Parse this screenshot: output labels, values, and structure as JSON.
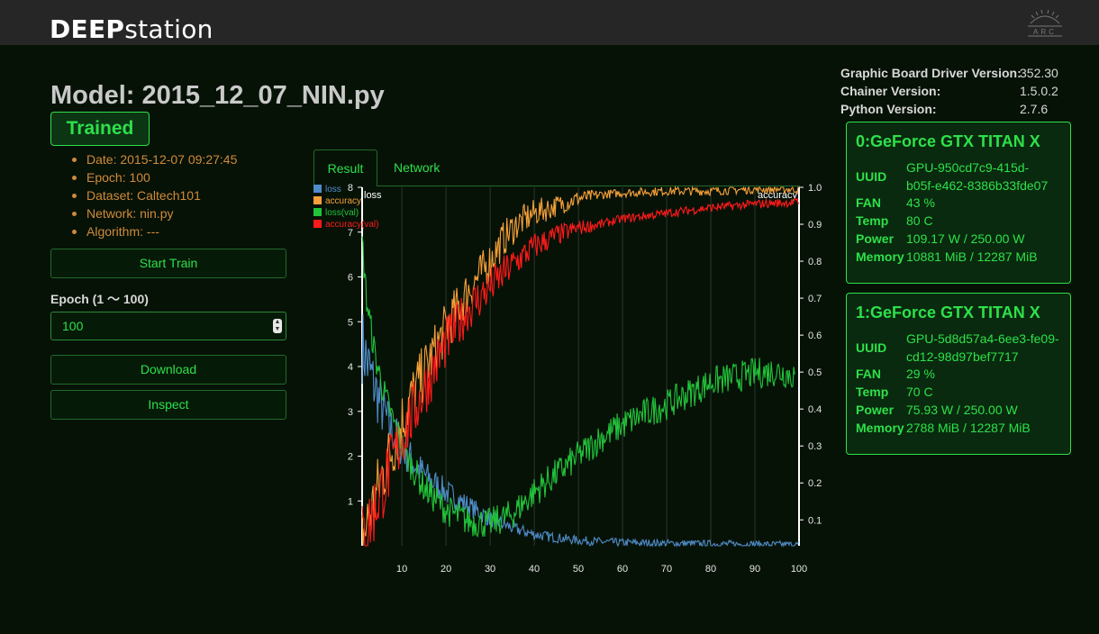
{
  "app": {
    "brand_bold": "DEEP",
    "brand_light": "station",
    "logo_text": "ARC"
  },
  "model": {
    "title": "Model: 2015_12_07_NIN.py",
    "status": "Trained",
    "info": [
      "Date: 2015-12-07 09:27:45",
      "Epoch: 100",
      "Dataset: Caltech101",
      "Network: nin.py",
      "Algorithm: ---"
    ]
  },
  "actions": {
    "start_train": "Start Train",
    "epoch_label": "Epoch (1 〜 100)",
    "epoch_value": "100",
    "download": "Download",
    "inspect": "Inspect"
  },
  "tabs": {
    "result": "Result",
    "network": "Network"
  },
  "versions": [
    {
      "label": "Graphic Board Driver Version:",
      "value": "352.30"
    },
    {
      "label": "Chainer Version:",
      "value": "1.5.0.2"
    },
    {
      "label": "Python Version:",
      "value": "2.7.6"
    }
  ],
  "gpus": [
    {
      "name": "0:GeForce GTX TITAN X",
      "uuid_label": "UUID",
      "uuid_line1": "GPU-950cd7c9-415d-",
      "uuid_line2": "b05f-e462-8386b33fde07",
      "fan_label": "FAN",
      "fan": "43 %",
      "temp_label": "Temp",
      "temp": "80 C",
      "power_label": "Power",
      "power": "109.17 W / 250.00 W",
      "memory_label": "Memory",
      "memory": "10881 MiB / 12287 MiB"
    },
    {
      "name": "1:GeForce GTX TITAN X",
      "uuid_label": "UUID",
      "uuid_line1": "GPU-5d8d57a4-6ee3-fe09-",
      "uuid_line2": "cd12-98d97bef7717",
      "fan_label": "FAN",
      "fan": "29 %",
      "temp_label": "Temp",
      "temp": "70 C",
      "power_label": "Power",
      "power": "75.93 W / 250.00 W",
      "memory_label": "Memory",
      "memory": "2788 MiB / 12287 MiB"
    }
  ],
  "chart_data": {
    "type": "line",
    "left_axis_label": "loss",
    "right_axis_label": "accuracy",
    "x_range": [
      1,
      100
    ],
    "x_ticks": [
      10,
      20,
      30,
      40,
      50,
      60,
      70,
      80,
      90,
      100
    ],
    "y_left_range": [
      0,
      8
    ],
    "y_left_ticks": [
      1,
      2,
      3,
      4,
      5,
      6,
      7,
      8
    ],
    "y_right_range": [
      0.03,
      1.0
    ],
    "y_right_ticks": [
      0.1,
      0.2,
      0.3,
      0.4,
      0.5,
      0.6,
      0.7,
      0.8,
      0.9,
      "1.0"
    ],
    "grid": "vertical",
    "legend": "top-left",
    "series": [
      {
        "name": "loss",
        "axis": "left",
        "color": "#4f8cc9",
        "x": [
          1,
          3,
          5,
          7,
          10,
          13,
          16,
          20,
          25,
          30,
          35,
          40,
          45,
          50,
          55,
          60,
          70,
          80,
          90,
          100
        ],
        "values": [
          4.5,
          3.8,
          3.2,
          2.7,
          2.2,
          1.8,
          1.5,
          1.2,
          0.9,
          0.6,
          0.4,
          0.25,
          0.18,
          0.12,
          0.09,
          0.07,
          0.05,
          0.04,
          0.03,
          0.02
        ]
      },
      {
        "name": "accuracy",
        "axis": "right",
        "color": "#f5a03a",
        "x": [
          1,
          3,
          5,
          8,
          11,
          15,
          20,
          25,
          30,
          33,
          36,
          40,
          45,
          50,
          55,
          60,
          70,
          80,
          90,
          100
        ],
        "values": [
          0.05,
          0.12,
          0.2,
          0.3,
          0.4,
          0.5,
          0.62,
          0.72,
          0.8,
          0.86,
          0.9,
          0.93,
          0.95,
          0.97,
          0.98,
          0.985,
          0.99,
          0.99,
          0.995,
          0.995
        ]
      },
      {
        "name": "loss(val)",
        "axis": "left",
        "color": "#22c43a",
        "x": [
          1,
          2,
          4,
          6,
          8,
          11,
          15,
          20,
          25,
          30,
          35,
          40,
          45,
          50,
          55,
          60,
          65,
          70,
          75,
          80,
          85,
          90,
          95,
          99
        ],
        "values": [
          6.8,
          5.5,
          4.2,
          3.4,
          2.8,
          2.0,
          1.3,
          0.8,
          0.55,
          0.5,
          0.7,
          1.2,
          1.6,
          2.0,
          2.4,
          2.7,
          2.95,
          3.15,
          3.4,
          3.65,
          3.75,
          3.85,
          3.9,
          3.8
        ]
      },
      {
        "name": "accuracy(val)",
        "axis": "right",
        "color": "#ff1a1a",
        "x": [
          1,
          3,
          5,
          8,
          11,
          15,
          20,
          25,
          30,
          35,
          40,
          45,
          50,
          55,
          60,
          70,
          80,
          90,
          100
        ],
        "values": [
          0.05,
          0.1,
          0.17,
          0.26,
          0.35,
          0.45,
          0.58,
          0.67,
          0.73,
          0.79,
          0.84,
          0.87,
          0.89,
          0.9,
          0.915,
          0.93,
          0.945,
          0.955,
          0.96
        ]
      }
    ]
  }
}
